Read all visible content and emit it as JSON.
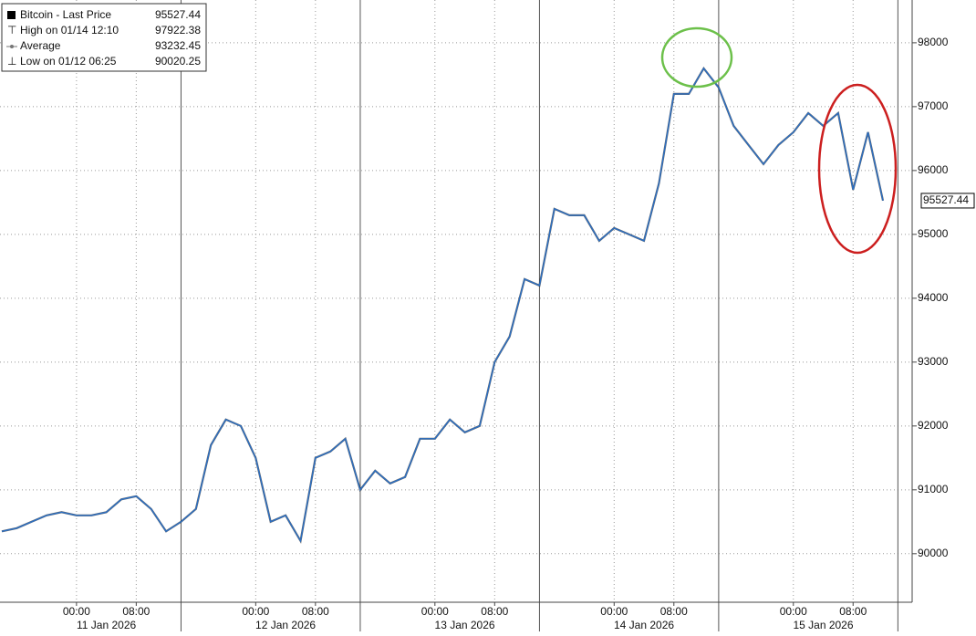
{
  "chart_data": {
    "type": "line",
    "legend": [
      {
        "label": "Bitcoin - Last Price",
        "value": "95527.44"
      },
      {
        "label": "High on 01/14 12:10",
        "value": "97922.38"
      },
      {
        "label": "Average",
        "value": "93232.45"
      },
      {
        "label": "Low on 01/12 06:25",
        "value": "90020.25"
      }
    ],
    "categories": [
      null,
      null,
      null,
      null,
      null,
      "00:00",
      null,
      null,
      null,
      "08:00",
      null,
      null,
      null,
      null,
      null,
      null,
      null,
      "00:00",
      null,
      null,
      null,
      "08:00",
      null,
      null,
      null,
      null,
      null,
      null,
      null,
      "00:00",
      null,
      null,
      null,
      "08:00",
      null,
      null,
      null,
      null,
      null,
      null,
      null,
      "00:00",
      null,
      null,
      null,
      "08:00",
      null,
      null,
      null,
      null,
      null,
      null,
      null,
      "00:00",
      null,
      null,
      null,
      "08:00",
      null,
      null
    ],
    "days": [
      "11 Jan 2026",
      "12 Jan 2026",
      "13 Jan 2026",
      "14 Jan 2026",
      "15 Jan 2026"
    ],
    "series": [
      {
        "name": "Bitcoin - Last Price",
        "color": "#2b6fc4",
        "values": [
          90350,
          90400,
          90500,
          90600,
          90650,
          90600,
          90600,
          90650,
          90850,
          90900,
          90700,
          90350,
          90500,
          90700,
          91700,
          92100,
          92000,
          91500,
          90500,
          90600,
          90200,
          91500,
          91600,
          91800,
          91000,
          91300,
          91100,
          91200,
          91800,
          91800,
          92100,
          91900,
          92000,
          93000,
          93400,
          94300,
          94200,
          95400,
          95300,
          95300,
          94900,
          95100,
          95000,
          94900,
          95800,
          97200,
          97200,
          97600,
          97300,
          96700,
          96400,
          96100,
          96400,
          96600,
          96900,
          96700,
          96900,
          95700,
          96600,
          95527.44
        ]
      }
    ],
    "ylim": [
      89240,
      98670
    ],
    "yticks": [
      90000,
      91000,
      92000,
      93000,
      94000,
      95000,
      96000,
      97000,
      98000
    ],
    "grid": true
  }
}
